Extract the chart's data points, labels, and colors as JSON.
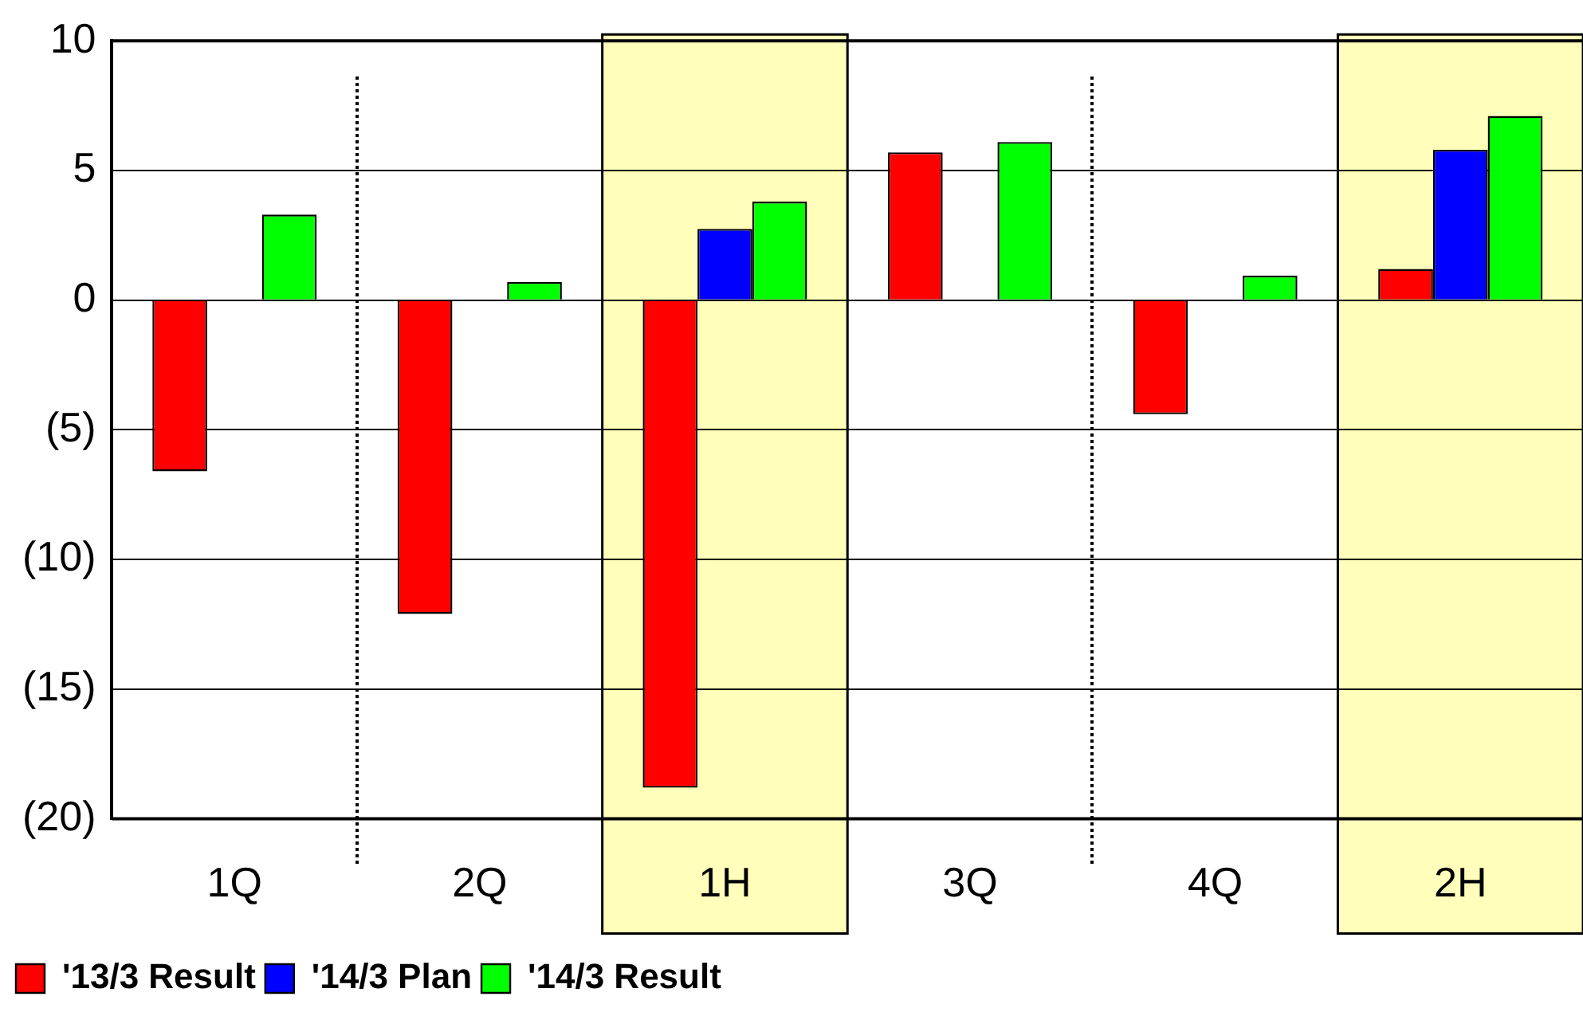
{
  "chart_data": {
    "type": "bar",
    "categories": [
      "1Q",
      "2Q",
      "1H",
      "3Q",
      "4Q",
      "2H"
    ],
    "series": [
      {
        "name": "'13/3 Result",
        "color": "#ff0000",
        "values": [
          -6.6,
          -12.1,
          -18.8,
          5.7,
          -4.4,
          1.2
        ]
      },
      {
        "name": "'14/3 Plan",
        "color": "#0000ff",
        "values": [
          null,
          null,
          2.75,
          null,
          null,
          5.8
        ]
      },
      {
        "name": "'14/3 Result",
        "color": "#00ff00",
        "values": [
          3.3,
          0.7,
          3.8,
          6.1,
          0.95,
          7.1
        ]
      }
    ],
    "ylim": [
      -20,
      10
    ],
    "yticks": [
      {
        "value": -20,
        "label": "(20)"
      },
      {
        "value": -15,
        "label": "(15)"
      },
      {
        "value": -10,
        "label": "(10)"
      },
      {
        "value": -5,
        "label": "(5)"
      },
      0,
      5,
      10
    ],
    "grid": "y",
    "legend": "bottom left",
    "bands": [
      {
        "axis": "x",
        "from": "1H",
        "to": "1H",
        "color": "#ffffbb"
      },
      {
        "axis": "x",
        "from": "2H",
        "to": "2H",
        "color": "#ffffbb"
      }
    ]
  }
}
